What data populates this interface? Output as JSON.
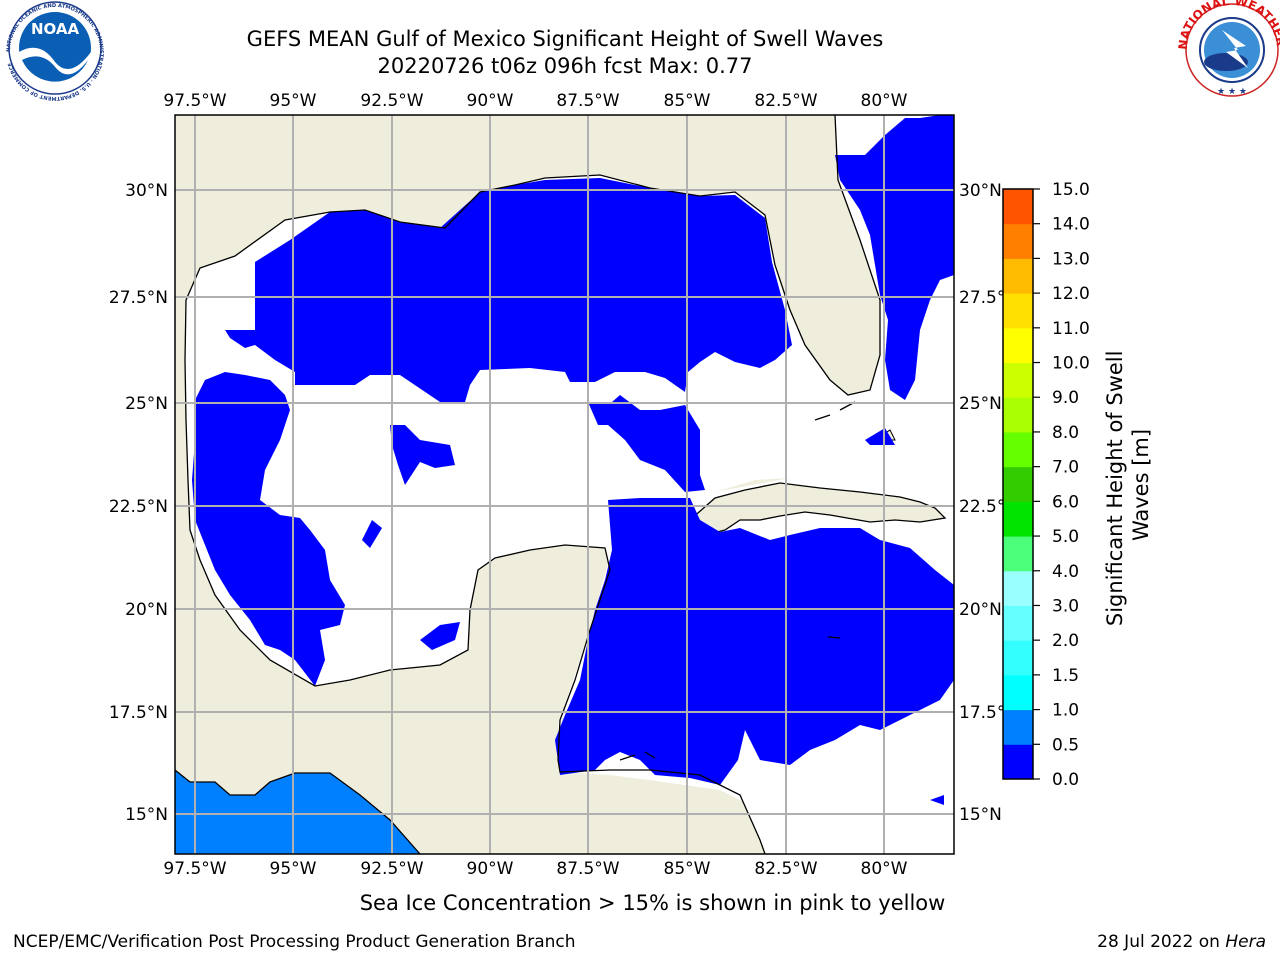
{
  "title": {
    "line1": "GEFS MEAN Gulf of Mexico Significant Height of Swell Waves",
    "line2": "20220726 t06z 096h fcst   Max: 0.77"
  },
  "map": {
    "lon_labels": [
      "97.5°W",
      "95°W",
      "92.5°W",
      "90°W",
      "87.5°W",
      "85°W",
      "82.5°W",
      "80°W"
    ],
    "lat_labels_left": [
      "30°N",
      "27.5°N",
      "25°N",
      "22.5°N",
      "20°N",
      "17.5°N",
      "15°N"
    ],
    "lat_labels_right": [
      "30°N",
      "27.5°",
      "25°N",
      "22.5°",
      "20°N",
      "17.5°",
      "15°N"
    ],
    "colors": {
      "land": "#efeedd",
      "ocean": "#ffffff",
      "swell_0_0p5": "#0000ff",
      "swell_0p5_1": "#0080ff"
    }
  },
  "colorbar": {
    "label_line1": "Significant Height of Swell",
    "label_line2": "Waves [m]",
    "ticks": [
      "0.0",
      "0.5",
      "1.0",
      "1.5",
      "2.0",
      "3.0",
      "4.0",
      "5.0",
      "6.0",
      "7.0",
      "8.0",
      "9.0",
      "10.0",
      "11.0",
      "12.0",
      "13.0",
      "14.0",
      "15.0"
    ],
    "colors": [
      "#0000ff",
      "#0080ff",
      "#00ffff",
      "#33ffff",
      "#66ffff",
      "#99ffff",
      "#4cff7a",
      "#00e400",
      "#33cc00",
      "#66ff00",
      "#aaff00",
      "#ccff00",
      "#ffff00",
      "#ffe000",
      "#ffbb00",
      "#ff8000",
      "#ff5500",
      "#ff2a00",
      "#ff0000"
    ]
  },
  "caption": "Sea Ice Concentration > 15% is shown in pink to yellow",
  "footer": {
    "left": "NCEP/EMC/Verification Post Processing Product Generation Branch",
    "right_date": "28 Jul 2022 on ",
    "right_host": "Hera"
  },
  "logos": {
    "noaa": "NOAA",
    "noaa_ring": "NATIONAL OCEANIC AND ATMOSPHERIC ADMINISTRATION · U.S. DEPARTMENT OF COMMERCE",
    "nws_ring": "NATIONAL WEATHER SERVICE"
  }
}
